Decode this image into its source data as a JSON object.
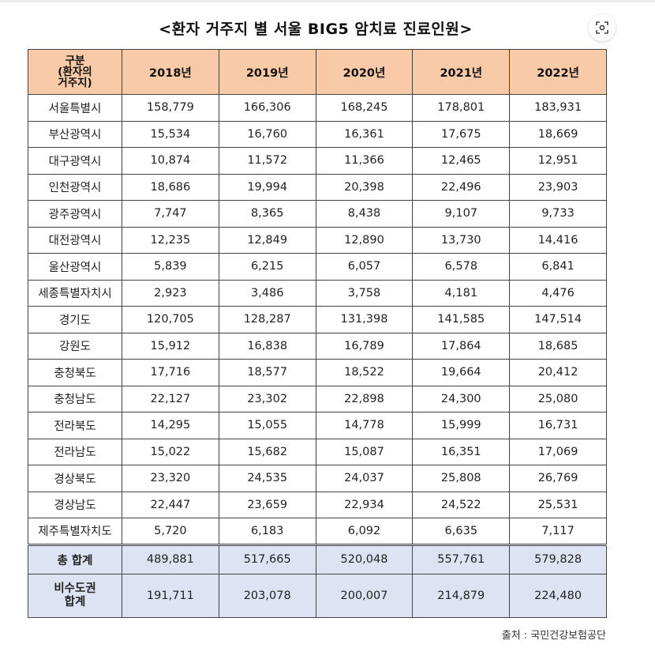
{
  "title": "<환자 거주지 별 서울 BIG5 암치료 진료인원>",
  "lens_icon": "lens-scan-icon",
  "header": {
    "label": "구분\n(환자의\n거주지)",
    "years": [
      "2018년",
      "2019년",
      "2020년",
      "2021년",
      "2022년"
    ]
  },
  "rows": [
    {
      "region": "서울특별시",
      "values": [
        "158,779",
        "166,306",
        "168,245",
        "178,801",
        "183,931"
      ]
    },
    {
      "region": "부산광역시",
      "values": [
        "15,534",
        "16,760",
        "16,361",
        "17,675",
        "18,669"
      ]
    },
    {
      "region": "대구광역시",
      "values": [
        "10,874",
        "11,572",
        "11,366",
        "12,465",
        "12,951"
      ]
    },
    {
      "region": "인천광역시",
      "values": [
        "18,686",
        "19,994",
        "20,398",
        "22,496",
        "23,903"
      ]
    },
    {
      "region": "광주광역시",
      "values": [
        "7,747",
        "8,365",
        "8,438",
        "9,107",
        "9,733"
      ]
    },
    {
      "region": "대전광역시",
      "values": [
        "12,235",
        "12,849",
        "12,890",
        "13,730",
        "14,416"
      ]
    },
    {
      "region": "울산광역시",
      "values": [
        "5,839",
        "6,215",
        "6,057",
        "6,578",
        "6,841"
      ]
    },
    {
      "region": "세종특별자치시",
      "values": [
        "2,923",
        "3,486",
        "3,758",
        "4,181",
        "4,476"
      ]
    },
    {
      "region": "경기도",
      "values": [
        "120,705",
        "128,287",
        "131,398",
        "141,585",
        "147,514"
      ]
    },
    {
      "region": "강원도",
      "values": [
        "15,912",
        "16,838",
        "16,789",
        "17,864",
        "18,685"
      ]
    },
    {
      "region": "충청북도",
      "values": [
        "17,716",
        "18,577",
        "18,522",
        "19,664",
        "20,412"
      ]
    },
    {
      "region": "충청남도",
      "values": [
        "22,127",
        "23,302",
        "22,898",
        "24,300",
        "25,080"
      ]
    },
    {
      "region": "전라북도",
      "values": [
        "14,295",
        "15,055",
        "14,778",
        "15,999",
        "16,731"
      ]
    },
    {
      "region": "전라남도",
      "values": [
        "15,022",
        "15,682",
        "15,087",
        "16,351",
        "17,069"
      ]
    },
    {
      "region": "경상북도",
      "values": [
        "23,320",
        "24,535",
        "24,037",
        "25,808",
        "26,769"
      ]
    },
    {
      "region": "경상남도",
      "values": [
        "22,447",
        "23,659",
        "22,934",
        "24,522",
        "25,531"
      ]
    },
    {
      "region": "제주특별자치도",
      "values": [
        "5,720",
        "6,183",
        "6,092",
        "6,635",
        "7,117"
      ]
    }
  ],
  "total": {
    "region": "총 합계",
    "values": [
      "489,881",
      "517,665",
      "520,048",
      "557,761",
      "579,828"
    ]
  },
  "nonmetro": {
    "region": "비수도권\n합계",
    "values": [
      "191,711",
      "203,078",
      "200,007",
      "214,879",
      "224,480"
    ]
  },
  "source": "출처 : 국민건강보험공단",
  "colors": {
    "header_bg": "#f9caa7",
    "summary_bg": "#dde3f2",
    "border": "#444444"
  }
}
